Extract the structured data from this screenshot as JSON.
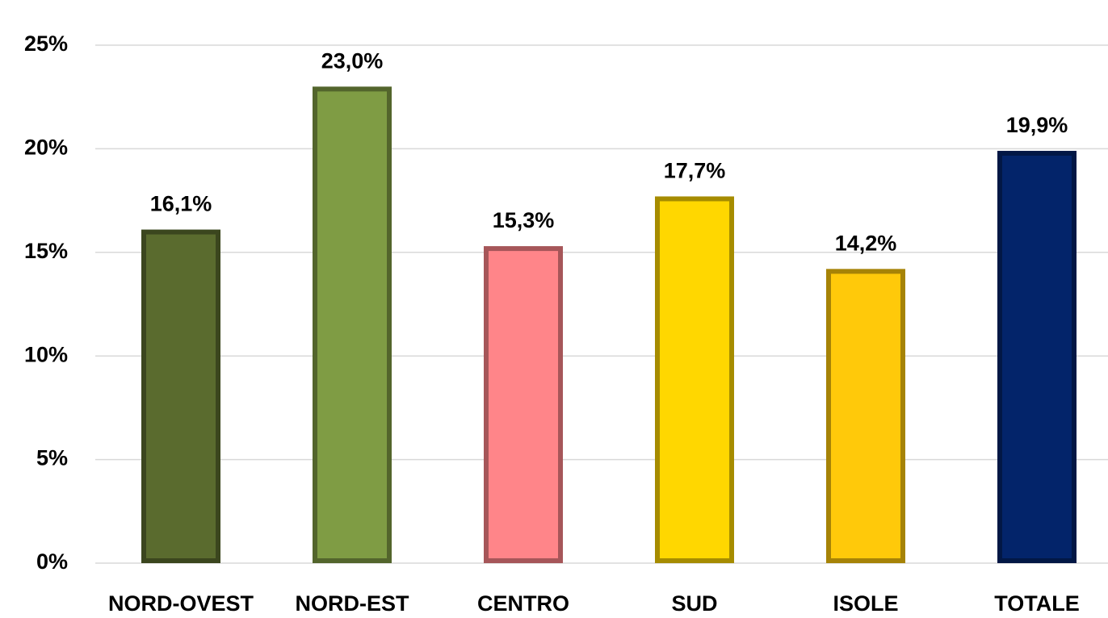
{
  "chart_data": {
    "type": "bar",
    "categories": [
      "NORD-OVEST",
      "NORD-EST",
      "CENTRO",
      "SUD",
      "ISOLE",
      "TOTALE"
    ],
    "values": [
      16.1,
      23.0,
      15.3,
      17.7,
      14.2,
      19.9
    ],
    "value_labels": [
      "16,1%",
      "23,0%",
      "15,3%",
      "17,7%",
      "14,2%",
      "19,9%"
    ],
    "colors": [
      "#5a6b2e",
      "#7f9c44",
      "#ff8589",
      "#ffd700",
      "#ffc90a",
      "#03246a"
    ],
    "ylim": [
      0,
      25
    ],
    "yticks": [
      {
        "value": 0,
        "label": "0%"
      },
      {
        "value": 5,
        "label": "5%"
      },
      {
        "value": 10,
        "label": "10%"
      },
      {
        "value": 15,
        "label": "15%"
      },
      {
        "value": 20,
        "label": "20%"
      },
      {
        "value": 25,
        "label": "25%"
      }
    ],
    "grid": true
  }
}
